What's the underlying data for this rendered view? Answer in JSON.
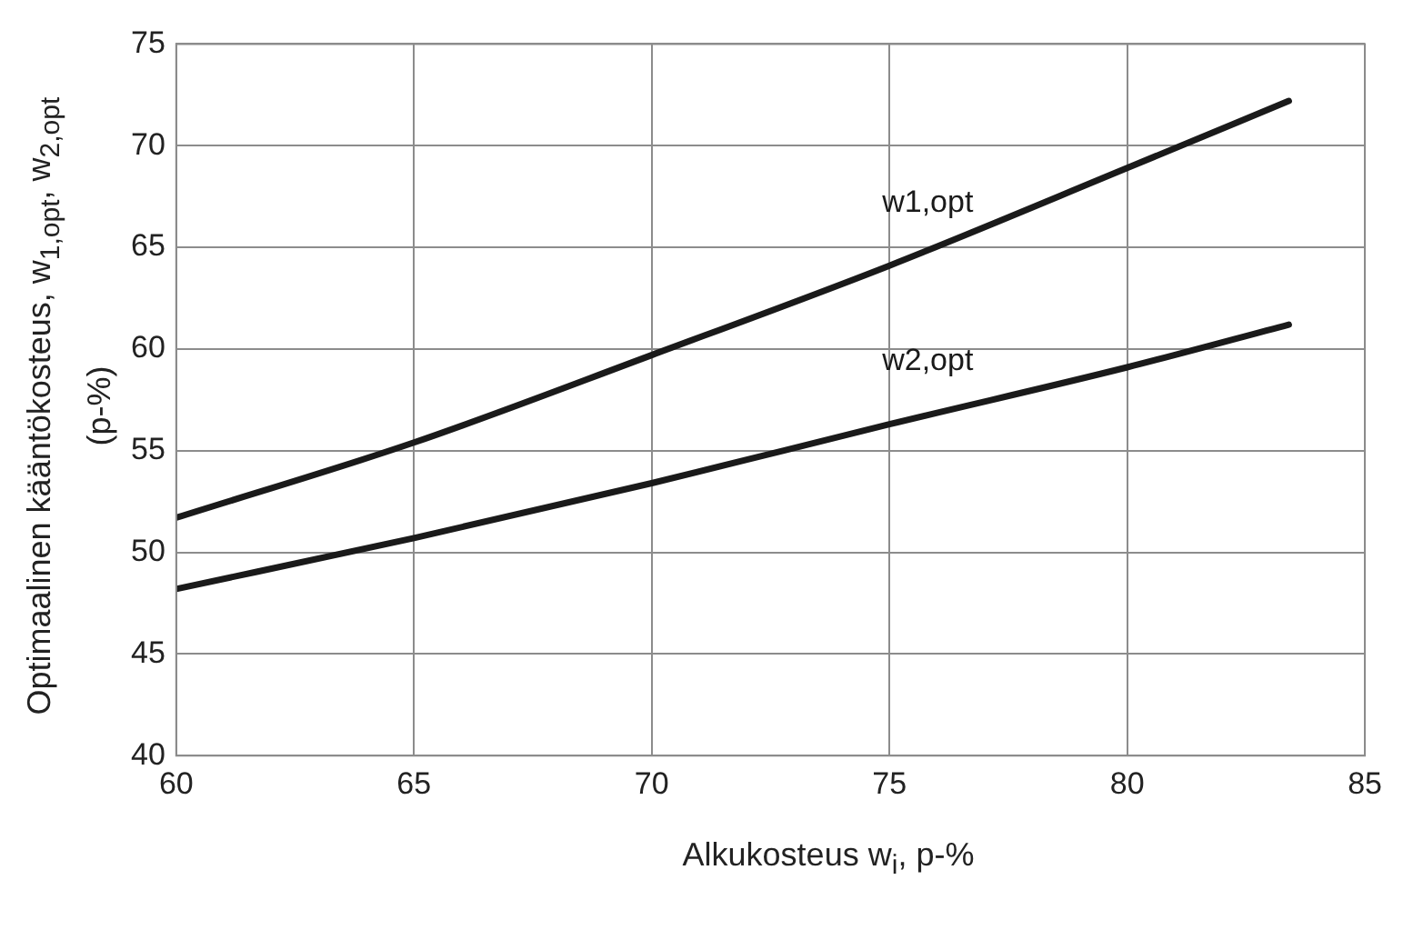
{
  "chart_data": {
    "type": "line",
    "xlabel": "Alkukosteus w$_{i}$, p-%",
    "ylabel": "Optimaalinen kääntökosteus, w$_{1,opt}$, w$_{2,opt}$ (p-%)",
    "xlim": [
      60,
      85
    ],
    "xticks": [
      60,
      65,
      70,
      75,
      80,
      85
    ],
    "ylim": [
      40,
      75
    ],
    "yticks": [
      40,
      45,
      50,
      55,
      60,
      65,
      70,
      75
    ],
    "grid": true,
    "marker": "none",
    "line_style": "solid",
    "series": [
      {
        "name": "w1,opt",
        "color": "#1a1a1a",
        "x": [
          60,
          65,
          70,
          75,
          80,
          83.4
        ],
        "values": [
          51.7,
          55.4,
          59.7,
          64.1,
          68.9,
          72.2
        ]
      },
      {
        "name": "w2,opt",
        "color": "#1a1a1a",
        "x": [
          60,
          65,
          70,
          75,
          80,
          83.4
        ],
        "values": [
          48.2,
          50.7,
          53.4,
          56.3,
          59.1,
          61.2
        ]
      }
    ]
  }
}
